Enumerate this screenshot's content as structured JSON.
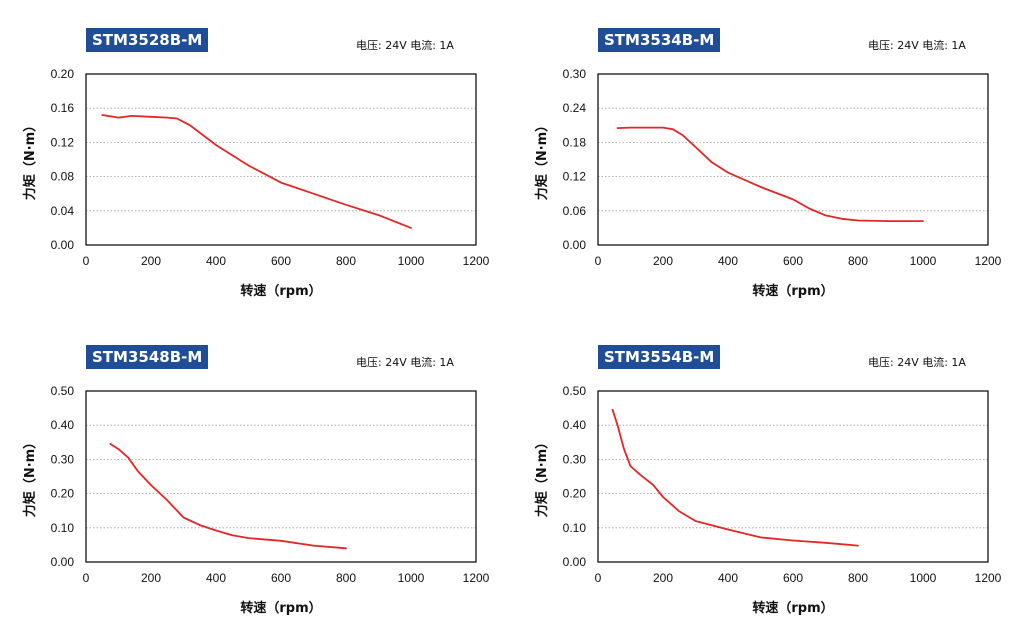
{
  "chart_data": [
    {
      "type": "line",
      "title": "STM3528B-M",
      "subtitle": "电压: 24V 电流: 1A",
      "xlabel": "转速（rpm）",
      "ylabel": "力矩（N·m）",
      "xlim": [
        0,
        1200
      ],
      "ylim": [
        0,
        0.2
      ],
      "xticks": [
        "0",
        "200",
        "400",
        "600",
        "800",
        "1000",
        "1200"
      ],
      "yticks": [
        "0.00",
        "0.04",
        "0.08",
        "0.12",
        "0.16",
        "0.20"
      ],
      "grid": "horizontal-dotted",
      "line_color": "#e32626",
      "x": [
        50,
        100,
        140,
        200,
        250,
        280,
        320,
        400,
        500,
        600,
        700,
        800,
        900,
        1000
      ],
      "y": [
        0.152,
        0.149,
        0.151,
        0.15,
        0.149,
        0.148,
        0.14,
        0.117,
        0.093,
        0.073,
        0.06,
        0.047,
        0.035,
        0.02
      ]
    },
    {
      "type": "line",
      "title": "STM3534B-M",
      "subtitle": "电压: 24V 电流: 1A",
      "xlabel": "转速（rpm）",
      "ylabel": "力矩（N·m）",
      "xlim": [
        0,
        1200
      ],
      "ylim": [
        0,
        0.3
      ],
      "xticks": [
        "0",
        "200",
        "400",
        "600",
        "800",
        "1000",
        "1200"
      ],
      "yticks": [
        "0.00",
        "0.06",
        "0.12",
        "0.18",
        "0.24",
        "0.30"
      ],
      "grid": "horizontal-dotted",
      "line_color": "#e32626",
      "x": [
        60,
        100,
        150,
        200,
        230,
        260,
        300,
        350,
        400,
        500,
        600,
        650,
        700,
        750,
        800,
        900,
        1000
      ],
      "y": [
        0.205,
        0.206,
        0.206,
        0.206,
        0.203,
        0.193,
        0.172,
        0.145,
        0.127,
        0.102,
        0.08,
        0.064,
        0.052,
        0.046,
        0.043,
        0.042,
        0.042
      ]
    },
    {
      "type": "line",
      "title": "STM3548B-M",
      "subtitle": "电压: 24V 电流: 1A",
      "xlabel": "转速（rpm）",
      "ylabel": "力矩（N·m）",
      "xlim": [
        0,
        1200
      ],
      "ylim": [
        0,
        0.5
      ],
      "xticks": [
        "0",
        "200",
        "400",
        "600",
        "800",
        "1000",
        "1200"
      ],
      "yticks": [
        "0.00",
        "0.10",
        "0.20",
        "0.30",
        "0.40",
        "0.50"
      ],
      "grid": "horizontal-dotted",
      "line_color": "#e32626",
      "x": [
        75,
        100,
        130,
        160,
        200,
        250,
        300,
        350,
        400,
        450,
        500,
        600,
        700,
        800
      ],
      "y": [
        0.345,
        0.33,
        0.305,
        0.265,
        0.225,
        0.18,
        0.13,
        0.108,
        0.092,
        0.078,
        0.07,
        0.062,
        0.048,
        0.04
      ]
    },
    {
      "type": "line",
      "title": "STM3554B-M",
      "subtitle": "电压: 24V 电流: 1A",
      "xlabel": "转速（rpm）",
      "ylabel": "力矩（N·m）",
      "xlim": [
        0,
        1200
      ],
      "ylim": [
        0,
        0.5
      ],
      "xticks": [
        "0",
        "200",
        "400",
        "600",
        "800",
        "1000",
        "1200"
      ],
      "yticks": [
        "0.00",
        "0.10",
        "0.20",
        "0.30",
        "0.40",
        "0.50"
      ],
      "grid": "horizontal-dotted",
      "line_color": "#e32626",
      "x": [
        45,
        60,
        80,
        100,
        130,
        170,
        200,
        250,
        300,
        400,
        500,
        600,
        700,
        800
      ],
      "y": [
        0.445,
        0.4,
        0.33,
        0.28,
        0.255,
        0.225,
        0.19,
        0.148,
        0.12,
        0.095,
        0.072,
        0.063,
        0.056,
        0.048
      ]
    }
  ]
}
